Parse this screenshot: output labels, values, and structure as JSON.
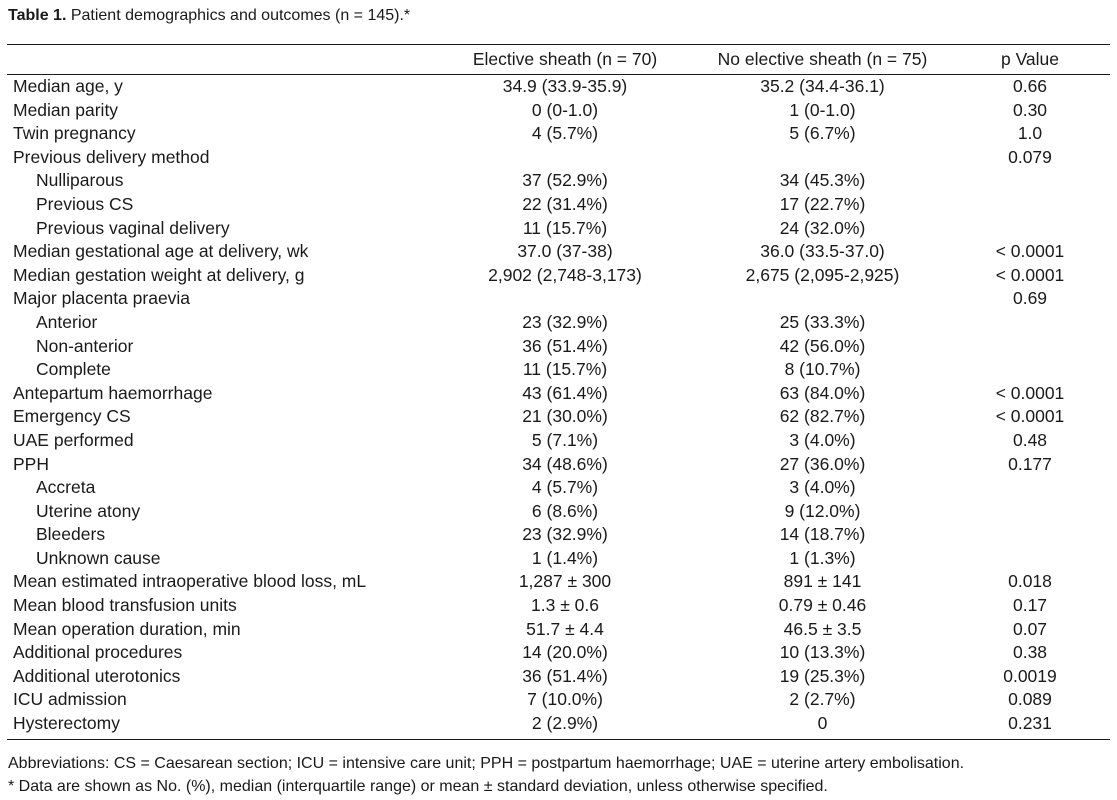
{
  "caption": {
    "label": "Table 1.",
    "text": " Patient demographics and outcomes (n = 145).*"
  },
  "columns": [
    "",
    "Elective sheath (n = 70)",
    "No elective sheath (n = 75)",
    "p Value"
  ],
  "rows": [
    {
      "label": "Median age, y",
      "indent": false,
      "elective": "34.9 (33.9-35.9)",
      "no_elective": "35.2 (34.4-36.1)",
      "p": "0.66"
    },
    {
      "label": "Median parity",
      "indent": false,
      "elective": "0 (0-1.0)",
      "no_elective": "1 (0-1.0)",
      "p": "0.30"
    },
    {
      "label": "Twin pregnancy",
      "indent": false,
      "elective": "4 (5.7%)",
      "no_elective": "5 (6.7%)",
      "p": "1.0"
    },
    {
      "label": "Previous delivery method",
      "indent": false,
      "elective": "",
      "no_elective": "",
      "p": "0.079"
    },
    {
      "label": "Nulliparous",
      "indent": true,
      "elective": "37 (52.9%)",
      "no_elective": "34 (45.3%)",
      "p": ""
    },
    {
      "label": "Previous CS",
      "indent": true,
      "elective": "22 (31.4%)",
      "no_elective": "17 (22.7%)",
      "p": ""
    },
    {
      "label": "Previous vaginal delivery",
      "indent": true,
      "elective": "11 (15.7%)",
      "no_elective": "24 (32.0%)",
      "p": ""
    },
    {
      "label": "Median gestational age at delivery, wk",
      "indent": false,
      "elective": "37.0 (37-38)",
      "no_elective": "36.0 (33.5-37.0)",
      "p": "< 0.0001"
    },
    {
      "label": "Median gestation weight at delivery, g",
      "indent": false,
      "elective": "2,902 (2,748-3,173)",
      "no_elective": "2,675 (2,095-2,925)",
      "p": "< 0.0001"
    },
    {
      "label": "Major placenta praevia",
      "indent": false,
      "elective": "",
      "no_elective": "",
      "p": "0.69"
    },
    {
      "label": "Anterior",
      "indent": true,
      "elective": "23 (32.9%)",
      "no_elective": "25 (33.3%)",
      "p": ""
    },
    {
      "label": "Non-anterior",
      "indent": true,
      "elective": "36 (51.4%)",
      "no_elective": "42 (56.0%)",
      "p": ""
    },
    {
      "label": "Complete",
      "indent": true,
      "elective": "11 (15.7%)",
      "no_elective": "8 (10.7%)",
      "p": ""
    },
    {
      "label": "Antepartum haemorrhage",
      "indent": false,
      "elective": "43 (61.4%)",
      "no_elective": "63 (84.0%)",
      "p": "< 0.0001"
    },
    {
      "label": "Emergency CS",
      "indent": false,
      "elective": "21 (30.0%)",
      "no_elective": "62 (82.7%)",
      "p": "< 0.0001"
    },
    {
      "label": "UAE performed",
      "indent": false,
      "elective": "5 (7.1%)",
      "no_elective": "3 (4.0%)",
      "p": "0.48"
    },
    {
      "label": "PPH",
      "indent": false,
      "elective": "34 (48.6%)",
      "no_elective": "27 (36.0%)",
      "p": "0.177"
    },
    {
      "label": "Accreta",
      "indent": true,
      "elective": "4 (5.7%)",
      "no_elective": "3 (4.0%)",
      "p": ""
    },
    {
      "label": "Uterine atony",
      "indent": true,
      "elective": "6 (8.6%)",
      "no_elective": "9 (12.0%)",
      "p": ""
    },
    {
      "label": "Bleeders",
      "indent": true,
      "elective": "23 (32.9%)",
      "no_elective": "14 (18.7%)",
      "p": ""
    },
    {
      "label": "Unknown cause",
      "indent": true,
      "elective": "1 (1.4%)",
      "no_elective": "1 (1.3%)",
      "p": ""
    },
    {
      "label": "Mean estimated intraoperative blood loss, mL",
      "indent": false,
      "elective": "1,287 ± 300",
      "no_elective": "891 ± 141",
      "p": "0.018"
    },
    {
      "label": "Mean blood transfusion units",
      "indent": false,
      "elective": "1.3 ± 0.6",
      "no_elective": "0.79 ± 0.46",
      "p": "0.17"
    },
    {
      "label": "Mean operation duration, min",
      "indent": false,
      "elective": "51.7 ± 4.4",
      "no_elective": "46.5 ± 3.5",
      "p": "0.07"
    },
    {
      "label": "Additional procedures",
      "indent": false,
      "elective": "14 (20.0%)",
      "no_elective": "10 (13.3%)",
      "p": "0.38"
    },
    {
      "label": "Additional uterotonics",
      "indent": false,
      "elective": "36 (51.4%)",
      "no_elective": "19 (25.3%)",
      "p": "0.0019"
    },
    {
      "label": "ICU admission",
      "indent": false,
      "elective": "7 (10.0%)",
      "no_elective": "2 (2.7%)",
      "p": "0.089"
    },
    {
      "label": "Hysterectomy",
      "indent": false,
      "elective": "2 (2.9%)",
      "no_elective": "0",
      "p": "0.231"
    }
  ],
  "footnotes": {
    "abbreviations": "Abbreviations: CS = Caesarean section; ICU = intensive care unit; PPH = postpartum haemorrhage; UAE = uterine artery embolisation.",
    "asterisk": "* Data are shown as No. (%), median (interquartile range) or mean ± standard deviation, unless otherwise specified."
  }
}
